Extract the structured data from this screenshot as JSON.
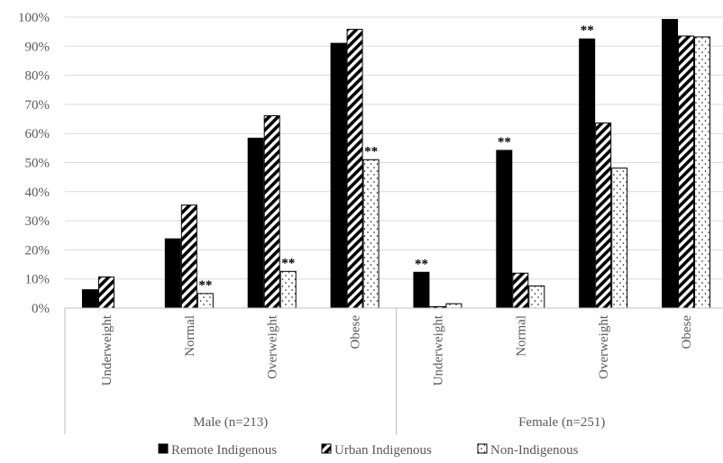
{
  "chart_data": {
    "type": "bar",
    "ylim": [
      0,
      100
    ],
    "y_ticks": [
      "0%",
      "10%",
      "20%",
      "30%",
      "40%",
      "50%",
      "60%",
      "70%",
      "80%",
      "90%",
      "100%"
    ],
    "grid": true,
    "legend_position": "bottom",
    "groups": [
      {
        "label": "Male (n=213)",
        "categories": [
          "Underweight",
          "Normal",
          "Overweight",
          "Obese"
        ]
      },
      {
        "label": "Female (n=251)",
        "categories": [
          "Underweight",
          "Normal",
          "Overweight",
          "Obese"
        ]
      }
    ],
    "series": [
      {
        "name": "Remote Indigenous",
        "pattern": "solid",
        "color": "#000000",
        "values": [
          6.3,
          23.8,
          58.4,
          91.0,
          12.3,
          54.2,
          92.5,
          99.2
        ],
        "significance": [
          "",
          "",
          "",
          "",
          "**",
          "**",
          "**",
          ""
        ]
      },
      {
        "name": "Urban Indigenous",
        "pattern": "diagonal-stripes",
        "color": "#000000",
        "values": [
          10.7,
          35.4,
          66.1,
          95.8,
          0.5,
          12.0,
          63.6,
          93.5
        ],
        "significance": [
          "",
          "",
          "",
          "",
          "",
          "",
          "",
          ""
        ]
      },
      {
        "name": "Non-Indigenous",
        "pattern": "dots",
        "color": "#000000",
        "values": [
          0,
          5.0,
          12.6,
          51.0,
          1.5,
          7.6,
          48.1,
          93.2
        ],
        "significance": [
          "",
          "**",
          "**",
          "**",
          "",
          "",
          "",
          ""
        ]
      }
    ]
  }
}
